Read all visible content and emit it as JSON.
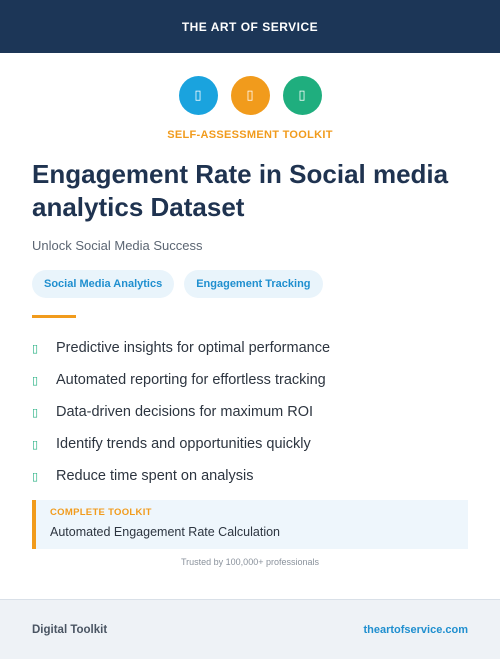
{
  "header": {
    "brand": "THE ART OF SERVICE"
  },
  "icons": [
    {
      "name": "chart-icon",
      "glyph": "▯",
      "color": "#1aa3de"
    },
    {
      "name": "target-icon",
      "glyph": "▯",
      "color": "#f19b1c"
    },
    {
      "name": "growth-icon",
      "glyph": "▯",
      "color": "#1fae7e"
    }
  ],
  "kicker": "SELF-ASSESSMENT TOOLKIT",
  "title": "Engagement Rate in Social media analytics Dataset",
  "subtitle": "Unlock Social Media Success",
  "tags": [
    "Social Media Analytics",
    "Engagement Tracking"
  ],
  "check_glyph": "▯",
  "features": [
    "Predictive insights for optimal performance",
    "Automated reporting for effortless tracking",
    "Data-driven decisions for maximum ROI",
    "Identify trends and opportunities quickly",
    "Reduce time spent on analysis"
  ],
  "callout": {
    "label": "COMPLETE TOOLKIT",
    "text": "Automated Engagement Rate Calculation"
  },
  "trusted": "Trusted by 100,000+ professionals",
  "footer": {
    "left": "Digital Toolkit",
    "right": "theartofservice.com"
  }
}
